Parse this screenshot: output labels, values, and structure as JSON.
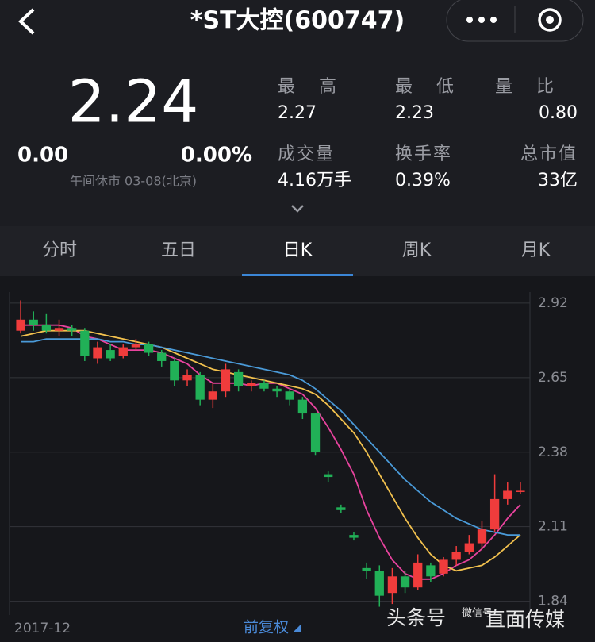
{
  "header": {
    "title": "*ST大控(600747)"
  },
  "quote": {
    "price": "2.24",
    "change": "0.00",
    "change_pct": "0.00%",
    "status": "午间休市 03-08(北京)",
    "stats": [
      {
        "label": "最高",
        "value": "2.27"
      },
      {
        "label": "最低",
        "value": "2.23"
      },
      {
        "label": "量比",
        "value": "0.80"
      },
      {
        "label": "成交量",
        "value": "4.16万手"
      },
      {
        "label": "换手率",
        "value": "0.39%"
      },
      {
        "label": "总市值",
        "value": "33亿"
      }
    ]
  },
  "tabs": {
    "items": [
      "分时",
      "五日",
      "日K",
      "周K",
      "月K"
    ],
    "active": 2
  },
  "chart_data": {
    "type": "candlestick",
    "open": [
      2.82,
      2.86,
      2.84,
      2.82,
      2.83,
      2.82,
      2.72,
      2.75,
      2.73,
      2.76,
      2.77,
      2.74,
      2.71,
      2.64,
      2.66,
      2.57,
      2.6,
      2.67,
      2.62,
      2.63,
      2.61,
      2.6,
      2.57,
      2.52,
      2.3,
      2.18,
      2.08,
      1.96,
      1.95,
      1.87,
      1.93,
      1.89,
      1.97,
      1.94,
      1.99,
      2.02,
      2.05,
      2.1,
      2.21,
      2.24
    ],
    "high": [
      2.93,
      2.89,
      2.88,
      2.86,
      2.84,
      2.83,
      2.78,
      2.77,
      2.77,
      2.79,
      2.78,
      2.75,
      2.72,
      2.68,
      2.67,
      2.63,
      2.7,
      2.68,
      2.64,
      2.64,
      2.62,
      2.61,
      2.58,
      2.52,
      2.31,
      2.19,
      2.09,
      1.98,
      1.97,
      1.96,
      1.95,
      2.01,
      1.98,
      2.0,
      2.04,
      2.08,
      2.13,
      2.3,
      2.27,
      2.27
    ],
    "low": [
      2.81,
      2.82,
      2.81,
      2.8,
      2.8,
      2.71,
      2.7,
      2.71,
      2.72,
      2.75,
      2.73,
      2.69,
      2.62,
      2.62,
      2.55,
      2.54,
      2.58,
      2.6,
      2.6,
      2.6,
      2.58,
      2.55,
      2.5,
      2.37,
      2.27,
      2.16,
      2.06,
      1.92,
      1.82,
      1.83,
      1.87,
      1.88,
      1.91,
      1.93,
      1.97,
      2.01,
      2.03,
      2.09,
      2.19,
      2.23
    ],
    "close": [
      2.86,
      2.84,
      2.82,
      2.83,
      2.82,
      2.73,
      2.76,
      2.72,
      2.76,
      2.77,
      2.74,
      2.71,
      2.64,
      2.66,
      2.57,
      2.6,
      2.68,
      2.62,
      2.63,
      2.61,
      2.6,
      2.57,
      2.52,
      2.38,
      2.29,
      2.17,
      2.07,
      1.95,
      1.86,
      1.93,
      1.89,
      1.98,
      1.93,
      1.99,
      2.02,
      2.05,
      2.1,
      2.21,
      2.24,
      2.24
    ],
    "up_color": "#f03c3c",
    "down_color": "#21b057",
    "moving_averages": [
      {
        "color": "#e8439e",
        "values": [
          2.84,
          2.84,
          2.84,
          2.84,
          2.83,
          2.8,
          2.79,
          2.77,
          2.75,
          2.75,
          2.75,
          2.74,
          2.72,
          2.7,
          2.66,
          2.63,
          2.63,
          2.63,
          2.62,
          2.63,
          2.63,
          2.61,
          2.59,
          2.54,
          2.47,
          2.39,
          2.3,
          2.17,
          2.07,
          1.99,
          1.94,
          1.92,
          1.92,
          1.94,
          1.97,
          1.99,
          2.03,
          2.08,
          2.14,
          2.19
        ]
      },
      {
        "color": "#f2c14e",
        "values": [
          2.8,
          2.81,
          2.82,
          2.82,
          2.82,
          2.82,
          2.81,
          2.8,
          2.79,
          2.78,
          2.77,
          2.76,
          2.74,
          2.72,
          2.7,
          2.68,
          2.67,
          2.66,
          2.65,
          2.64,
          2.63,
          2.62,
          2.61,
          2.59,
          2.55,
          2.5,
          2.45,
          2.38,
          2.3,
          2.22,
          2.14,
          2.07,
          2.01,
          1.97,
          1.95,
          1.96,
          1.97,
          2.0,
          2.04,
          2.08
        ]
      },
      {
        "color": "#4a9ad8",
        "values": [
          2.78,
          2.78,
          2.79,
          2.79,
          2.79,
          2.79,
          2.79,
          2.78,
          2.78,
          2.77,
          2.77,
          2.76,
          2.75,
          2.74,
          2.73,
          2.72,
          2.71,
          2.7,
          2.69,
          2.68,
          2.67,
          2.66,
          2.64,
          2.61,
          2.57,
          2.53,
          2.48,
          2.43,
          2.38,
          2.33,
          2.28,
          2.24,
          2.2,
          2.17,
          2.14,
          2.12,
          2.1,
          2.09,
          2.08,
          2.08
        ]
      }
    ],
    "ylim": [
      1.79,
      2.96
    ],
    "yticks": [
      2.92,
      2.65,
      2.38,
      2.11,
      1.84
    ],
    "grid": true,
    "x_start_label": "2017-12",
    "adjust_label": "前复权"
  },
  "watermark": {
    "left": "头条号",
    "small": "微信号",
    "right": "直面传媒"
  }
}
